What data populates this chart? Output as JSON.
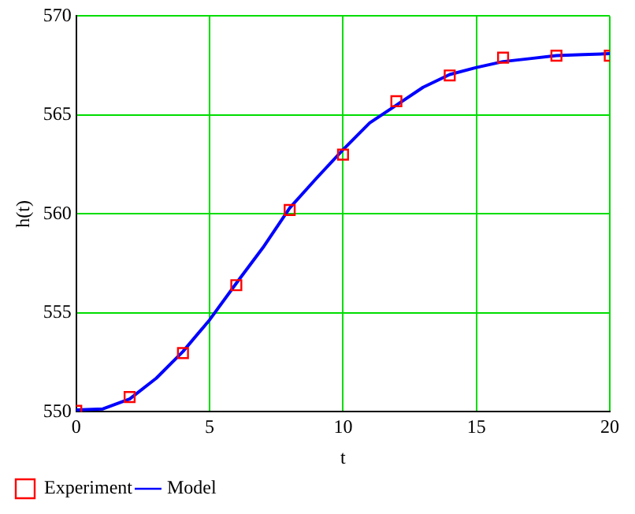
{
  "chart_data": {
    "type": "scatter",
    "xlabel": "t",
    "ylabel": "h(t)",
    "xlim": [
      0,
      20
    ],
    "xticks": [
      0,
      5,
      10,
      15,
      20
    ],
    "ylim": [
      550,
      570
    ],
    "yticks": [
      550,
      555,
      560,
      565,
      570
    ],
    "grid": true,
    "legend": "bottom left",
    "series": [
      {
        "name": "Experiment",
        "marker": "square",
        "color": "#ff0000",
        "x": [
          0,
          2,
          4,
          6,
          8,
          10,
          12,
          14,
          16,
          18,
          20
        ],
        "values": [
          550.05,
          550.75,
          552.97,
          556.4,
          560.2,
          563.0,
          565.7,
          567.0,
          567.9,
          568.0,
          568.0
        ]
      },
      {
        "name": "Model",
        "type": "line",
        "marker": "none",
        "line_style": "solid",
        "color": "#0000ff",
        "x": [
          0,
          1,
          2,
          3,
          4,
          5,
          6,
          7,
          8,
          9,
          10,
          11,
          12,
          13,
          14,
          15,
          16,
          17,
          18,
          19,
          20
        ],
        "values": [
          550.1,
          550.15,
          550.65,
          551.7,
          553.05,
          554.65,
          556.5,
          558.3,
          560.3,
          561.8,
          563.25,
          564.6,
          565.5,
          566.4,
          567.05,
          567.4,
          567.7,
          567.85,
          568.0,
          568.05,
          568.1
        ]
      }
    ]
  }
}
